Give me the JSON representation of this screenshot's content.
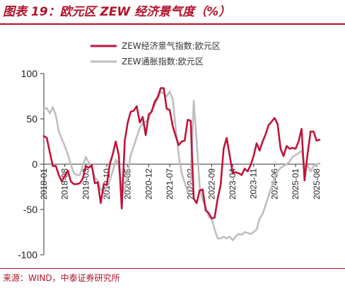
{
  "header": {
    "title": "图表 19：欧元区 ZEW 经济景气度（%）"
  },
  "footer": {
    "source": "来源：WIND，中泰证券研究所"
  },
  "chart_data": {
    "type": "line",
    "title": "图表 19：欧元区 ZEW 经济景气度（%）",
    "xlabel": "",
    "ylabel": "",
    "ylim": [
      -100,
      100
    ],
    "yticks": [
      -100,
      -50,
      0,
      50,
      100
    ],
    "x_tick_labels": [
      "2018-01",
      "2018-08",
      "2019-03",
      "2019-10",
      "2020-05",
      "2020-12",
      "2021-07",
      "2022-02",
      "2022-09",
      "2023-04",
      "2023-11",
      "2024-06",
      "2025-01",
      "2025-08"
    ],
    "x_range": [
      "2018-01",
      "2025-09"
    ],
    "grid": false,
    "legend_position": "top-center",
    "series": [
      {
        "name": "ZEW经济景气指数:欧元区",
        "color": "#c0143c",
        "x": [
          "2018-01",
          "2018-02",
          "2018-03",
          "2018-04",
          "2018-05",
          "2018-06",
          "2018-07",
          "2018-08",
          "2018-09",
          "2018-10",
          "2018-11",
          "2018-12",
          "2019-01",
          "2019-02",
          "2019-03",
          "2019-04",
          "2019-05",
          "2019-06",
          "2019-07",
          "2019-08",
          "2019-09",
          "2019-10",
          "2019-11",
          "2019-12",
          "2020-01",
          "2020-02",
          "2020-03",
          "2020-04",
          "2020-05",
          "2020-06",
          "2020-07",
          "2020-08",
          "2020-09",
          "2020-10",
          "2020-11",
          "2020-12",
          "2021-01",
          "2021-02",
          "2021-03",
          "2021-04",
          "2021-05",
          "2021-06",
          "2021-07",
          "2021-08",
          "2021-09",
          "2021-10",
          "2021-11",
          "2021-12",
          "2022-01",
          "2022-02",
          "2022-03",
          "2022-04",
          "2022-05",
          "2022-06",
          "2022-07",
          "2022-08",
          "2022-09",
          "2022-10",
          "2022-11",
          "2022-12",
          "2023-01",
          "2023-02",
          "2023-03",
          "2023-04",
          "2023-05",
          "2023-06",
          "2023-07",
          "2023-08",
          "2023-09",
          "2023-10",
          "2023-11",
          "2023-12",
          "2024-01",
          "2024-02",
          "2024-03",
          "2024-04",
          "2024-05",
          "2024-06",
          "2024-07",
          "2024-08",
          "2024-09",
          "2024-10",
          "2024-11",
          "2024-12",
          "2025-01",
          "2025-02",
          "2025-03",
          "2025-04",
          "2025-05",
          "2025-06",
          "2025-07",
          "2025-08",
          "2025-09"
        ],
        "values": [
          31,
          29,
          13,
          -2,
          -2,
          -12,
          -19,
          -13,
          -7,
          -19,
          -22,
          -22,
          -21,
          -16,
          -2,
          -4,
          -1,
          -21,
          -20,
          -43,
          -22,
          -23,
          0,
          11,
          25,
          10,
          -49,
          26,
          46,
          58,
          59,
          64,
          46,
          52,
          32,
          55,
          58,
          69,
          74,
          84,
          84,
          61,
          60,
          42,
          31,
          21,
          25,
          26,
          49,
          48,
          -38,
          -43,
          -29,
          -28,
          -51,
          -54,
          -60,
          -59,
          -38,
          -23,
          17,
          29,
          10,
          -10,
          -9,
          -10,
          -12,
          -5,
          -8,
          -1,
          9,
          23,
          15,
          25,
          33,
          43,
          47,
          51,
          44,
          17,
          9,
          20,
          17,
          18,
          17,
          25,
          39,
          -18,
          11,
          36,
          36,
          26,
          27
        ]
      },
      {
        "name": "ZEW通胀指数:欧元区",
        "color": "#bfbfbf",
        "x": [
          "2018-01",
          "2018-02",
          "2018-03",
          "2018-04",
          "2018-05",
          "2018-06",
          "2018-07",
          "2018-08",
          "2018-09",
          "2018-10",
          "2018-11",
          "2018-12",
          "2019-01",
          "2019-02",
          "2019-03",
          "2019-04",
          "2019-05",
          "2019-06",
          "2019-07",
          "2019-08",
          "2019-09",
          "2019-10",
          "2019-11",
          "2019-12",
          "2020-01",
          "2020-02",
          "2020-03",
          "2020-04",
          "2020-05",
          "2020-06",
          "2020-07",
          "2020-08",
          "2020-09",
          "2020-10",
          "2020-11",
          "2020-12",
          "2021-01",
          "2021-02",
          "2021-03",
          "2021-04",
          "2021-05",
          "2021-06",
          "2021-07",
          "2021-08",
          "2021-09",
          "2021-10",
          "2021-11",
          "2021-12",
          "2022-01",
          "2022-02",
          "2022-03",
          "2022-04",
          "2022-05",
          "2022-06",
          "2022-07",
          "2022-08",
          "2022-09",
          "2022-10",
          "2022-11",
          "2022-12",
          "2023-01",
          "2023-02",
          "2023-03",
          "2023-04",
          "2023-05",
          "2023-06",
          "2023-07",
          "2023-08",
          "2023-09",
          "2023-10",
          "2023-11",
          "2023-12",
          "2024-01",
          "2024-02",
          "2024-03",
          "2024-04",
          "2024-05",
          "2024-06",
          "2024-07",
          "2024-08",
          "2024-09",
          "2024-10",
          "2024-11",
          "2024-12",
          "2025-01",
          "2025-02",
          "2025-03",
          "2025-04",
          "2025-05",
          "2025-06",
          "2025-07",
          "2025-08",
          "2025-09"
        ],
        "values": [
          60,
          62,
          56,
          63,
          54,
          36,
          28,
          20,
          11,
          0,
          -10,
          -12,
          -12,
          -2,
          8,
          2,
          -3,
          -15,
          -18,
          -28,
          -30,
          -25,
          -18,
          -8,
          5,
          -1,
          -30,
          -28,
          -10,
          10,
          20,
          30,
          40,
          45,
          47,
          50,
          60,
          65,
          72,
          80,
          78,
          75,
          80,
          72,
          40,
          10,
          -10,
          -20,
          -30,
          -20,
          70,
          25,
          -25,
          -40,
          -47,
          -58,
          -60,
          -72,
          -82,
          -82,
          -80,
          -82,
          -80,
          -84,
          -80,
          -77,
          -78,
          -75,
          -76,
          -77,
          -75,
          -72,
          -60,
          -55,
          -45,
          -35,
          -25,
          -15,
          -8,
          -4,
          -2,
          0,
          3,
          8,
          10,
          12,
          15,
          -4,
          -1,
          -8,
          -2,
          0,
          1
        ]
      }
    ]
  }
}
